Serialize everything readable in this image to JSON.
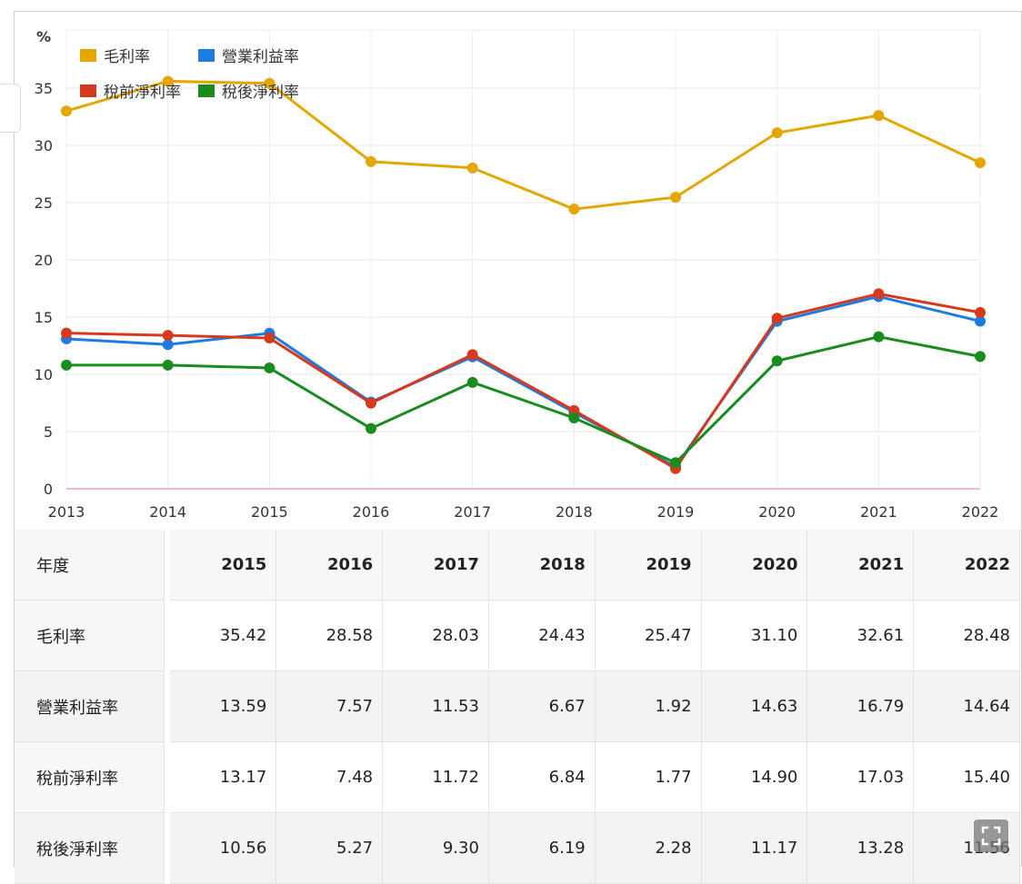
{
  "chart_data": {
    "type": "line",
    "unit": "%",
    "x": [
      "2013",
      "2014",
      "2015",
      "2016",
      "2017",
      "2018",
      "2019",
      "2020",
      "2021",
      "2022"
    ],
    "ylim": [
      0,
      35
    ],
    "yticks": [
      0,
      5,
      10,
      15,
      20,
      25,
      30,
      35
    ],
    "grid": true,
    "legend_position": "top-left",
    "series": [
      {
        "name": "毛利率",
        "color": "#e3a700",
        "values": [
          33.0,
          35.6,
          35.42,
          28.58,
          28.03,
          24.43,
          25.47,
          31.1,
          32.61,
          28.48
        ]
      },
      {
        "name": "營業利益率",
        "color": "#1e7be0",
        "values": [
          13.1,
          12.6,
          13.59,
          7.57,
          11.53,
          6.67,
          1.92,
          14.63,
          16.79,
          14.64
        ]
      },
      {
        "name": "稅前淨利率",
        "color": "#d63a1c",
        "values": [
          13.6,
          13.4,
          13.17,
          7.48,
          11.72,
          6.84,
          1.77,
          14.9,
          17.03,
          15.4
        ]
      },
      {
        "name": "稅後淨利率",
        "color": "#1a8c1f",
        "values": [
          10.8,
          10.8,
          10.56,
          5.27,
          9.3,
          6.19,
          2.28,
          11.17,
          13.28,
          11.56
        ]
      }
    ]
  },
  "table": {
    "corner": "年度",
    "years": [
      "2015",
      "2016",
      "2017",
      "2018",
      "2019",
      "2020",
      "2021",
      "2022"
    ],
    "rows": [
      {
        "label": "毛利率",
        "values": [
          "35.42",
          "28.58",
          "28.03",
          "24.43",
          "25.47",
          "31.10",
          "32.61",
          "28.48"
        ]
      },
      {
        "label": "營業利益率",
        "values": [
          "13.59",
          "7.57",
          "11.53",
          "6.67",
          "1.92",
          "14.63",
          "16.79",
          "14.64"
        ]
      },
      {
        "label": "稅前淨利率",
        "values": [
          "13.17",
          "7.48",
          "11.72",
          "6.84",
          "1.77",
          "14.90",
          "17.03",
          "15.40"
        ]
      },
      {
        "label": "稅後淨利率",
        "values": [
          "10.56",
          "5.27",
          "9.30",
          "6.19",
          "2.28",
          "11.17",
          "13.28",
          "11.56"
        ]
      }
    ]
  },
  "icons": {
    "expand": "expand-icon"
  }
}
